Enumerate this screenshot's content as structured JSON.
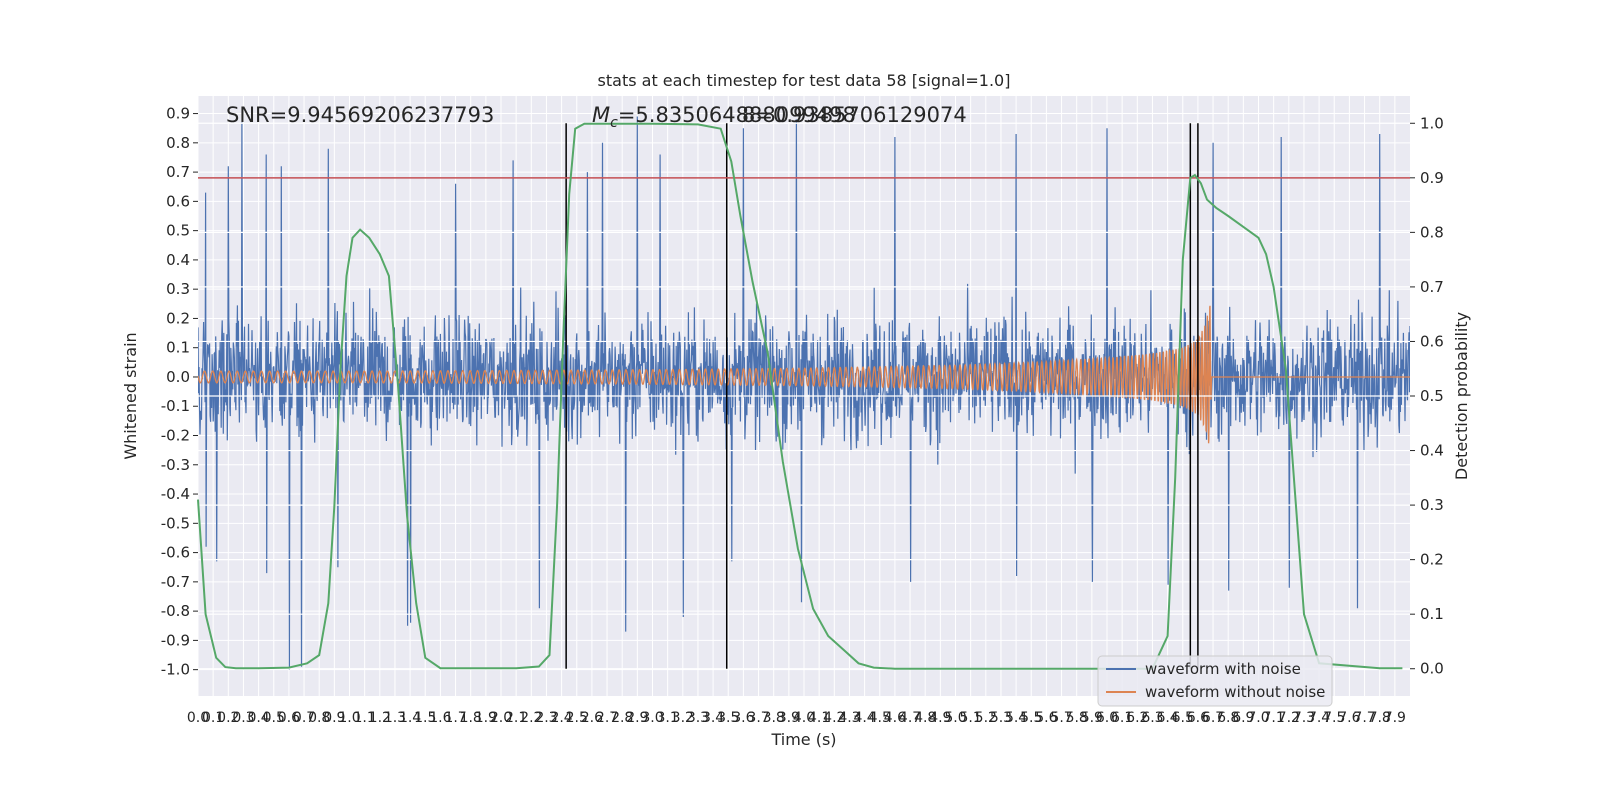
{
  "chart_data": {
    "type": "line",
    "title": "stats at each timestep for test data 58 [signal=1.0]",
    "xlabel": "Time (s)",
    "ylabel_left": "Whitened strain",
    "ylabel_right": "Detection probability",
    "xlim": [
      0,
      8
    ],
    "ylim_left": [
      -1.09,
      0.96
    ],
    "ylim_right": [
      -0.05,
      1.05
    ],
    "x_ticks": [
      0.0,
      0.1,
      0.2,
      0.3,
      0.4,
      0.5,
      0.6,
      0.7,
      0.8,
      0.9,
      1.0,
      1.1,
      1.2,
      1.3,
      1.4,
      1.5,
      1.6,
      1.7,
      1.8,
      1.9,
      2.0,
      2.1,
      2.2,
      2.3,
      2.4,
      2.5,
      2.6,
      2.7,
      2.8,
      2.9,
      3.0,
      3.1,
      3.2,
      3.3,
      3.4,
      3.5,
      3.6,
      3.7,
      3.8,
      3.9,
      4.0,
      4.1,
      4.2,
      4.3,
      4.4,
      4.5,
      4.6,
      4.7,
      4.8,
      4.9,
      5.0,
      5.1,
      5.2,
      5.3,
      5.4,
      5.5,
      5.6,
      5.7,
      5.8,
      5.9,
      6.0,
      6.1,
      6.2,
      6.3,
      6.4,
      6.5,
      6.6,
      6.7,
      6.8,
      6.9,
      7.0,
      7.1,
      7.2,
      7.3,
      7.4,
      7.5,
      7.6,
      7.7,
      7.8,
      7.9
    ],
    "y_ticks_left": [
      0.9,
      0.8,
      0.7,
      0.6,
      0.5,
      0.4,
      0.3,
      0.2,
      0.1,
      0.0,
      -0.1,
      -0.2,
      -0.3,
      -0.4,
      -0.5,
      -0.6,
      -0.7,
      -0.8,
      -0.9,
      -1.0
    ],
    "y_ticks_right": [
      1.0,
      0.9,
      0.8,
      0.7,
      0.6,
      0.5,
      0.4,
      0.3,
      0.2,
      0.1,
      0.0
    ],
    "annotations": {
      "snr": "SNR=9.94569206237793",
      "mc_symbol": "M",
      "mc_subscript": "c",
      "mc_value": "=5.835064888099498",
      "overlap_value": "8=0.9385706129074"
    },
    "threshold": {
      "y_right": 0.9,
      "color": "#c44e52"
    },
    "vertical_lines_x": [
      2.43,
      3.49,
      6.55,
      6.6
    ],
    "series": [
      {
        "name": "waveform with noise",
        "color": "#4c72b0",
        "description_kind": "dense noise",
        "spike_x": [
          0.05,
          0.2,
          0.29,
          0.45,
          0.55,
          0.86,
          1.7,
          2.08,
          2.57,
          2.67,
          2.9,
          3.05,
          3.6,
          3.95,
          4.6,
          5.4,
          6.0,
          6.7,
          7.15,
          7.8
        ],
        "spike_y": [
          0.63,
          0.72,
          0.87,
          0.76,
          0.72,
          0.78,
          0.66,
          0.74,
          0.7,
          0.8,
          0.89,
          0.76,
          0.85,
          0.88,
          0.82,
          0.83,
          0.85,
          0.8,
          0.82,
          0.83
        ],
        "dip_x": [
          0.05,
          0.12,
          0.45,
          0.6,
          0.68,
          0.92,
          1.38,
          1.4,
          2.25,
          2.82,
          3.2,
          3.52,
          3.98,
          4.7,
          5.4,
          5.9,
          6.4,
          6.8,
          7.2,
          7.65
        ],
        "dip_y": [
          -0.58,
          -0.63,
          -0.67,
          -1.0,
          -0.99,
          -0.65,
          -0.85,
          -0.84,
          -0.79,
          -0.87,
          -0.82,
          -0.63,
          -0.77,
          -0.7,
          -0.68,
          -0.7,
          -0.71,
          -0.73,
          -0.72,
          -0.79
        ]
      },
      {
        "name": "waveform without noise",
        "color": "#dd8452",
        "envelope_t": [
          0.0,
          1.0,
          2.0,
          3.0,
          4.0,
          5.0,
          5.5,
          6.0,
          6.3,
          6.5,
          6.6,
          6.65,
          6.68,
          6.69,
          8.0
        ],
        "envelope_y": [
          0.02,
          0.02,
          0.022,
          0.025,
          0.03,
          0.04,
          0.05,
          0.065,
          0.08,
          0.1,
          0.13,
          0.18,
          0.25,
          0.0,
          0.0
        ]
      },
      {
        "name": "detection probability",
        "color": "#55a868",
        "axis": "right",
        "x": [
          0.0,
          0.05,
          0.12,
          0.18,
          0.25,
          0.4,
          0.6,
          0.72,
          0.8,
          0.86,
          0.9,
          0.94,
          0.98,
          1.02,
          1.07,
          1.13,
          1.2,
          1.26,
          1.32,
          1.38,
          1.44,
          1.5,
          1.6,
          1.8,
          2.1,
          2.25,
          2.32,
          2.37,
          2.41,
          2.45,
          2.49,
          2.55,
          2.7,
          3.0,
          3.3,
          3.45,
          3.52,
          3.58,
          3.66,
          3.76,
          3.86,
          3.96,
          4.06,
          4.16,
          4.26,
          4.36,
          4.46,
          4.6,
          5.0,
          5.5,
          6.0,
          6.3,
          6.4,
          6.45,
          6.5,
          6.55,
          6.58,
          6.62,
          6.66,
          6.72,
          6.8,
          6.9,
          7.0,
          7.05,
          7.1,
          7.18,
          7.3,
          7.4,
          7.8,
          7.95
        ],
        "y": [
          0.31,
          0.1,
          0.02,
          0.003,
          0.001,
          0.001,
          0.002,
          0.01,
          0.025,
          0.12,
          0.3,
          0.55,
          0.72,
          0.79,
          0.805,
          0.79,
          0.76,
          0.72,
          0.52,
          0.28,
          0.12,
          0.02,
          0.001,
          0.001,
          0.001,
          0.004,
          0.025,
          0.3,
          0.6,
          0.87,
          0.99,
          0.999,
          0.999,
          0.999,
          0.998,
          0.99,
          0.93,
          0.83,
          0.71,
          0.58,
          0.38,
          0.22,
          0.11,
          0.06,
          0.035,
          0.01,
          0.002,
          0.0,
          0.0,
          0.0,
          0.0,
          0.0,
          0.06,
          0.35,
          0.75,
          0.9,
          0.905,
          0.89,
          0.86,
          0.845,
          0.83,
          0.81,
          0.79,
          0.76,
          0.7,
          0.55,
          0.1,
          0.01,
          0.001,
          0.001
        ]
      }
    ],
    "legend": {
      "position": "lower-right",
      "entries": [
        "waveform with noise",
        "waveform without noise"
      ]
    }
  }
}
